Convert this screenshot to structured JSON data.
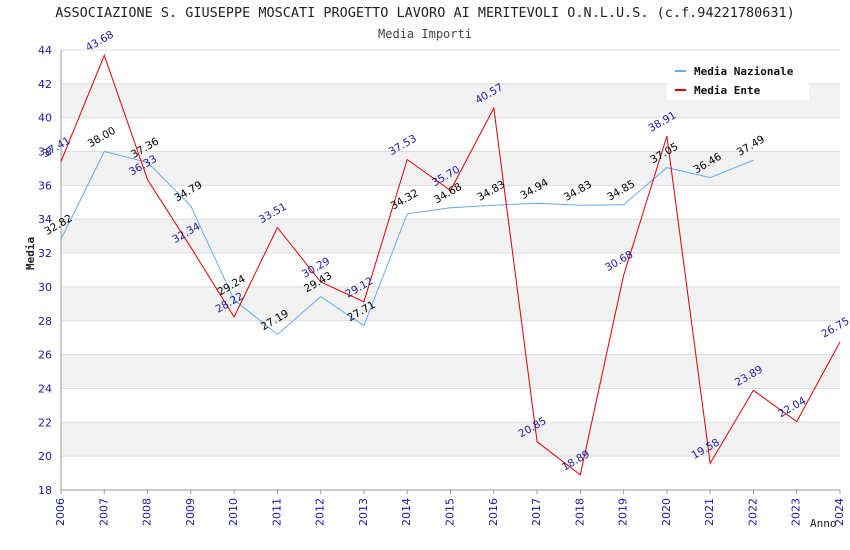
{
  "chart_data": {
    "type": "line",
    "title": "ASSOCIAZIONE S. GIUSEPPE MOSCATI PROGETTO LAVORO AI MERITEVOLI O.N.L.U.S. (c.f.94221780631)",
    "subtitle": "Media Importi",
    "xlabel": "Anno",
    "ylabel": "Media",
    "ylim": [
      18,
      44
    ],
    "yticks": [
      18,
      20,
      22,
      24,
      26,
      28,
      30,
      32,
      34,
      36,
      38,
      40,
      42,
      44
    ],
    "categories": [
      "2006",
      "2007",
      "2008",
      "2009",
      "2010",
      "2011",
      "2012",
      "2013",
      "2014",
      "2015",
      "2016",
      "2017",
      "2018",
      "2019",
      "2020",
      "2021",
      "2022",
      "2023",
      "2024"
    ],
    "series": [
      {
        "name": "Media Nazionale",
        "color": "#66aaee",
        "label_color": "#000000",
        "values": [
          32.82,
          38.0,
          37.36,
          34.79,
          29.24,
          27.19,
          29.43,
          27.71,
          34.32,
          34.68,
          34.83,
          34.94,
          34.83,
          34.85,
          37.05,
          36.46,
          37.49,
          null,
          null
        ],
        "labels": [
          "32.82",
          "38.00",
          "37.36",
          "34.79",
          "29.24",
          "27.19",
          "29.43",
          "27.71",
          "34.32",
          "34.68",
          "34.83",
          "34.94",
          "34.83",
          "34.85",
          "37.05",
          "36.46",
          "37.49",
          null,
          null
        ]
      },
      {
        "name": "Media Ente",
        "color": "#dd0000",
        "label_color": "#1a1aa0",
        "values": [
          37.41,
          43.68,
          36.33,
          32.34,
          28.22,
          33.51,
          30.29,
          29.12,
          37.53,
          35.7,
          40.57,
          20.85,
          18.89,
          30.68,
          38.91,
          19.58,
          23.89,
          22.04,
          26.75
        ],
        "labels": [
          "37.41",
          "43.68",
          "36.33",
          "32.34",
          "28.22",
          "33.51",
          "30.29",
          "29.12",
          "37.53",
          "35.70",
          "40.57",
          "20.85",
          "18.89",
          "30.68",
          "38.91",
          "19.58",
          "23.89",
          "22.04",
          "26.75"
        ]
      }
    ],
    "grid": true,
    "legend_position": "top-right"
  }
}
